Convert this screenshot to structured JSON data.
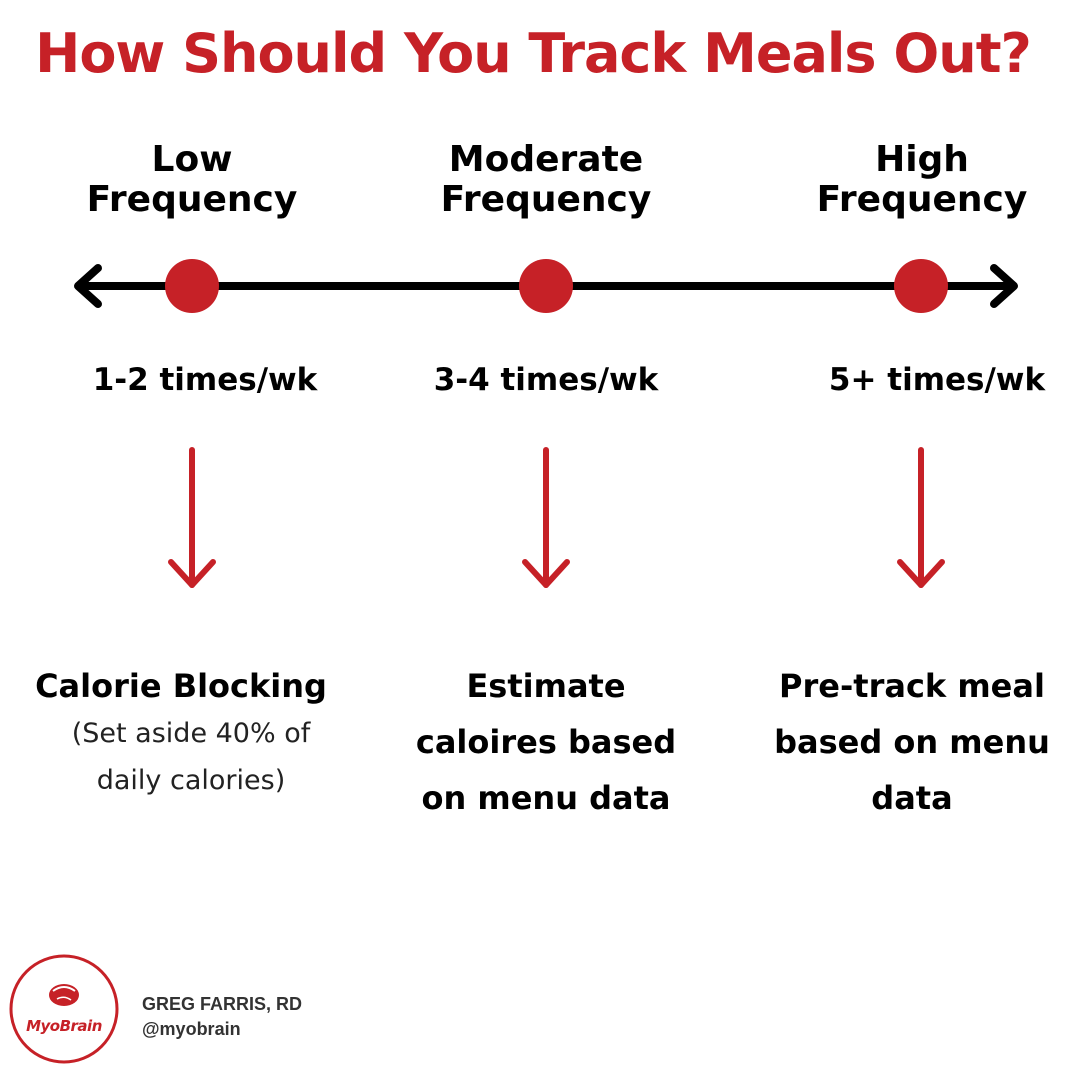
{
  "title": "How Should You Track Meals Out?",
  "colors": {
    "accent": "#c62127",
    "line": "#000000"
  },
  "frequencies": [
    {
      "level_line1": "Low",
      "level_line2": "Frequency",
      "rate": "1-2 times/wk",
      "method_lines": [
        "Calorie Blocking"
      ],
      "note_lines": [
        "(Set aside 40% of",
        "daily calories)"
      ]
    },
    {
      "level_line1": "Moderate",
      "level_line2": "Frequency",
      "rate": "3-4 times/wk",
      "method_lines": [
        "Estimate",
        "caloires based",
        "on menu data"
      ]
    },
    {
      "level_line1": "High",
      "level_line2": "Frequency",
      "rate": "5+ times/wk",
      "method_lines": [
        "Pre-track meal",
        "based on menu",
        "data"
      ]
    }
  ],
  "brand": {
    "logo_text": "MyoBrain",
    "logo_icon": "brain-icon",
    "author": "GREG FARRIS, RD",
    "handle": "@myobrain"
  }
}
